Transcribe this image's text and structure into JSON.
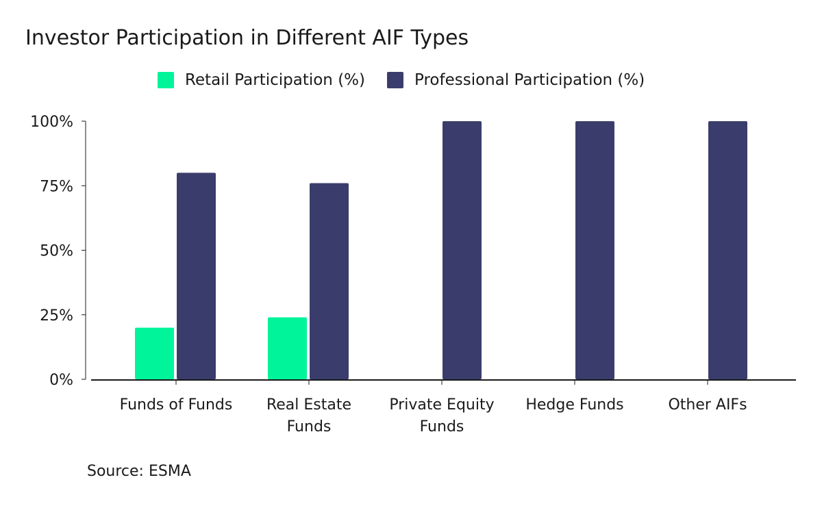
{
  "chart_data": {
    "type": "bar",
    "title": "Investor Participation in Different AIF Types",
    "categories": [
      [
        "Funds of Funds"
      ],
      [
        "Real Estate",
        "Funds"
      ],
      [
        "Private Equity",
        "Funds"
      ],
      [
        "Hedge Funds"
      ],
      [
        "Other AIFs"
      ]
    ],
    "series": [
      {
        "name": "Retail Participation (%)",
        "color": "#00f59b",
        "values": [
          20,
          24,
          0,
          0,
          0
        ]
      },
      {
        "name": "Professional Participation (%)",
        "color": "#3a3d6b",
        "values": [
          80,
          76,
          100,
          100,
          100
        ]
      }
    ],
    "ylim": [
      0,
      100
    ],
    "yticks": [
      0,
      25,
      50,
      75,
      100
    ],
    "ytick_labels": [
      "0%",
      "25%",
      "50%",
      "75%",
      "100%"
    ],
    "xlabel": "",
    "ylabel": "",
    "legend_position": "top-center",
    "grid": false
  },
  "source": "Source: ESMA"
}
